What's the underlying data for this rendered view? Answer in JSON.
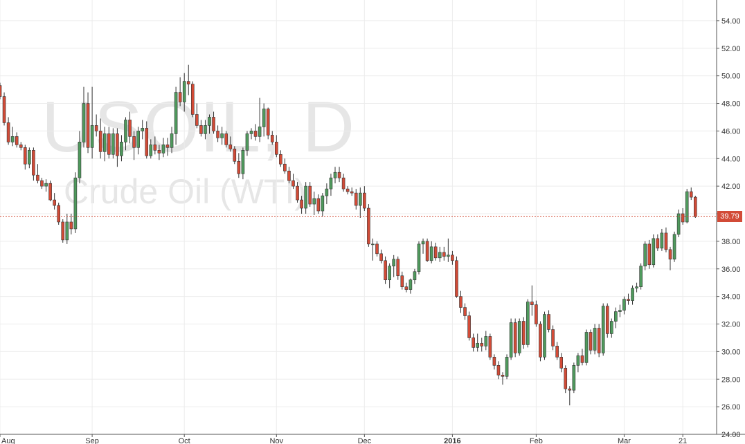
{
  "chart_data": {
    "type": "candlestick",
    "watermark": {
      "symbol": "USOIL, D",
      "name": "Crude Oil (WTI)"
    },
    "y_ticks": [
      "24.00",
      "26.00",
      "28.00",
      "30.00",
      "32.00",
      "34.00",
      "36.00",
      "38.00",
      "40.00",
      "42.00",
      "44.00",
      "46.00",
      "48.00",
      "50.00",
      "52.00",
      "54.00"
    ],
    "ylim": [
      24,
      55.5
    ],
    "x_ticks": [
      {
        "label": "Aug",
        "index": 0
      },
      {
        "label": "Sep",
        "index": 22
      },
      {
        "label": "Oct",
        "index": 44
      },
      {
        "label": "Nov",
        "index": 66
      },
      {
        "label": "Dec",
        "index": 87
      },
      {
        "label": "2016",
        "index": 108
      },
      {
        "label": "Feb",
        "index": 128
      },
      {
        "label": "Mar",
        "index": 149
      },
      {
        "label": "21",
        "index": 163
      }
    ],
    "last_price": "39.79",
    "grid": true,
    "colors": {
      "up": "#4f9a5d",
      "down": "#d24b37",
      "grid": "#ececec",
      "price_line": "#d24b37"
    },
    "ohlc": [
      [
        49.3,
        49.5,
        48.3,
        48.5
      ],
      [
        48.5,
        48.8,
        46.4,
        46.6
      ],
      [
        46.6,
        47.0,
        45.0,
        45.2
      ],
      [
        45.2,
        46.3,
        44.9,
        45.6
      ],
      [
        45.6,
        45.9,
        44.8,
        45.0
      ],
      [
        45.0,
        45.2,
        44.6,
        44.8
      ],
      [
        44.8,
        45.0,
        43.2,
        43.6
      ],
      [
        43.6,
        44.8,
        43.3,
        44.6
      ],
      [
        44.6,
        44.8,
        42.4,
        42.8
      ],
      [
        42.8,
        43.6,
        42.2,
        42.4
      ],
      [
        42.4,
        42.6,
        41.8,
        42.0
      ],
      [
        42.0,
        42.5,
        41.6,
        42.2
      ],
      [
        42.2,
        42.4,
        40.9,
        41.0
      ],
      [
        41.0,
        41.5,
        40.3,
        40.6
      ],
      [
        40.6,
        40.8,
        39.2,
        39.4
      ],
      [
        39.4,
        39.6,
        37.9,
        38.1
      ],
      [
        38.1,
        40.0,
        37.8,
        39.4
      ],
      [
        39.4,
        40.0,
        38.5,
        38.9
      ],
      [
        38.9,
        43.0,
        38.6,
        42.6
      ],
      [
        42.6,
        46.0,
        42.2,
        45.2
      ],
      [
        45.2,
        49.2,
        44.8,
        48.0
      ],
      [
        48.0,
        48.8,
        44.4,
        44.8
      ],
      [
        44.8,
        49.2,
        44.0,
        46.4
      ],
      [
        46.4,
        47.2,
        45.6,
        46.0
      ],
      [
        46.0,
        46.9,
        44.0,
        44.5
      ],
      [
        44.5,
        46.3,
        43.8,
        45.8
      ],
      [
        45.8,
        46.3,
        44.0,
        44.3
      ],
      [
        44.3,
        46.2,
        44.0,
        45.8
      ],
      [
        45.8,
        46.2,
        43.4,
        44.2
      ],
      [
        44.2,
        45.7,
        43.8,
        45.2
      ],
      [
        45.2,
        47.0,
        44.6,
        46.8
      ],
      [
        46.8,
        47.4,
        45.1,
        45.6
      ],
      [
        45.6,
        46.0,
        43.9,
        44.8
      ],
      [
        44.8,
        46.3,
        44.3,
        46.0
      ],
      [
        46.0,
        46.8,
        45.4,
        46.2
      ],
      [
        46.2,
        46.7,
        44.0,
        44.2
      ],
      [
        44.2,
        45.4,
        44.0,
        45.0
      ],
      [
        45.0,
        45.6,
        44.3,
        44.6
      ],
      [
        44.6,
        45.0,
        43.9,
        44.4
      ],
      [
        44.4,
        45.5,
        44.1,
        45.0
      ],
      [
        45.0,
        45.5,
        44.2,
        44.8
      ],
      [
        44.8,
        46.3,
        44.4,
        45.8
      ],
      [
        45.8,
        49.2,
        45.0,
        48.8
      ],
      [
        48.8,
        49.9,
        47.8,
        48.1
      ],
      [
        48.1,
        50.2,
        47.4,
        49.6
      ],
      [
        49.6,
        50.8,
        48.6,
        49.4
      ],
      [
        49.4,
        49.6,
        47.0,
        47.2
      ],
      [
        47.2,
        48.0,
        46.2,
        46.4
      ],
      [
        46.4,
        46.8,
        45.6,
        45.8
      ],
      [
        45.8,
        46.8,
        45.4,
        46.4
      ],
      [
        46.4,
        47.2,
        45.8,
        47.0
      ],
      [
        47.0,
        47.4,
        45.8,
        46.0
      ],
      [
        46.0,
        46.4,
        45.2,
        45.5
      ],
      [
        45.5,
        46.3,
        45.0,
        45.8
      ],
      [
        45.8,
        46.0,
        44.8,
        45.0
      ],
      [
        45.0,
        45.6,
        44.5,
        44.7
      ],
      [
        44.7,
        44.9,
        43.6,
        43.8
      ],
      [
        43.8,
        44.4,
        42.6,
        42.9
      ],
      [
        42.9,
        44.8,
        42.5,
        44.6
      ],
      [
        44.6,
        46.0,
        44.2,
        45.8
      ],
      [
        45.8,
        46.2,
        45.4,
        46.0
      ],
      [
        46.0,
        46.5,
        45.3,
        45.6
      ],
      [
        45.6,
        48.4,
        45.2,
        46.3
      ],
      [
        46.3,
        48.0,
        45.6,
        47.6
      ],
      [
        47.6,
        47.7,
        45.4,
        45.7
      ],
      [
        45.7,
        46.0,
        45.0,
        45.2
      ],
      [
        45.2,
        45.7,
        44.1,
        44.3
      ],
      [
        44.3,
        44.6,
        43.4,
        43.6
      ],
      [
        43.6,
        44.0,
        42.9,
        43.1
      ],
      [
        43.1,
        43.4,
        42.2,
        42.4
      ],
      [
        42.4,
        42.9,
        41.8,
        42.0
      ],
      [
        42.0,
        42.3,
        40.8,
        41.0
      ],
      [
        41.0,
        41.3,
        40.0,
        40.4
      ],
      [
        40.4,
        42.3,
        40.0,
        42.0
      ],
      [
        42.0,
        42.3,
        40.5,
        40.7
      ],
      [
        40.7,
        41.6,
        39.9,
        41.1
      ],
      [
        41.1,
        41.4,
        40.0,
        40.2
      ],
      [
        40.2,
        41.5,
        39.8,
        41.3
      ],
      [
        41.3,
        42.2,
        40.7,
        41.8
      ],
      [
        41.8,
        42.9,
        41.3,
        42.6
      ],
      [
        42.6,
        43.4,
        42.2,
        43.0
      ],
      [
        43.0,
        43.4,
        42.3,
        42.6
      ],
      [
        42.6,
        42.9,
        41.6,
        41.8
      ],
      [
        41.8,
        42.0,
        41.4,
        41.6
      ],
      [
        41.6,
        41.9,
        41.3,
        41.5
      ],
      [
        41.5,
        41.8,
        40.3,
        40.6
      ],
      [
        40.6,
        41.9,
        39.7,
        41.5
      ],
      [
        41.5,
        42.0,
        40.2,
        40.4
      ],
      [
        40.4,
        40.7,
        37.6,
        37.8
      ],
      [
        37.8,
        38.2,
        36.6,
        37.8
      ],
      [
        37.8,
        38.0,
        36.9,
        37.1
      ],
      [
        37.1,
        37.4,
        36.4,
        36.6
      ],
      [
        36.6,
        36.9,
        34.9,
        35.2
      ],
      [
        35.2,
        36.4,
        34.6,
        36.2
      ],
      [
        36.2,
        37.0,
        35.4,
        36.7
      ],
      [
        36.7,
        36.9,
        35.2,
        35.5
      ],
      [
        35.5,
        35.8,
        34.5,
        34.7
      ],
      [
        34.7,
        35.0,
        34.3,
        34.5
      ],
      [
        34.5,
        35.3,
        34.2,
        35.2
      ],
      [
        35.2,
        36.0,
        34.9,
        35.8
      ],
      [
        35.8,
        38.0,
        35.6,
        37.8
      ],
      [
        37.8,
        38.2,
        37.1,
        38.0
      ],
      [
        38.0,
        38.2,
        36.5,
        36.6
      ],
      [
        36.6,
        38.0,
        36.4,
        37.6
      ],
      [
        37.6,
        37.9,
        36.6,
        36.8
      ],
      [
        36.8,
        37.6,
        36.5,
        37.2
      ],
      [
        37.2,
        37.6,
        36.6,
        36.9
      ],
      [
        36.9,
        38.2,
        36.5,
        37.0
      ],
      [
        37.0,
        37.3,
        36.3,
        36.6
      ],
      [
        36.6,
        36.9,
        33.9,
        34.0
      ],
      [
        34.0,
        34.4,
        32.8,
        33.2
      ],
      [
        33.2,
        33.5,
        32.3,
        32.6
      ],
      [
        32.6,
        32.9,
        30.8,
        31.0
      ],
      [
        31.0,
        31.3,
        30.0,
        30.3
      ],
      [
        30.3,
        31.3,
        30.0,
        30.6
      ],
      [
        30.6,
        31.0,
        30.0,
        30.4
      ],
      [
        30.4,
        31.5,
        30.1,
        31.1
      ],
      [
        31.1,
        31.3,
        29.4,
        29.6
      ],
      [
        29.6,
        29.8,
        28.7,
        29.0
      ],
      [
        29.0,
        29.3,
        28.0,
        28.3
      ],
      [
        28.3,
        28.5,
        27.6,
        28.2
      ],
      [
        28.2,
        29.8,
        28.0,
        29.6
      ],
      [
        29.6,
        32.4,
        29.4,
        32.1
      ],
      [
        32.1,
        32.4,
        29.6,
        29.9
      ],
      [
        29.9,
        32.4,
        29.7,
        32.2
      ],
      [
        32.2,
        32.5,
        30.2,
        30.5
      ],
      [
        30.5,
        33.8,
        30.3,
        33.6
      ],
      [
        33.6,
        34.8,
        32.6,
        33.4
      ],
      [
        33.4,
        33.7,
        31.8,
        32.0
      ],
      [
        32.0,
        32.2,
        29.3,
        29.6
      ],
      [
        29.6,
        32.9,
        29.4,
        32.7
      ],
      [
        32.7,
        33.0,
        31.4,
        31.6
      ],
      [
        31.6,
        31.9,
        30.1,
        30.4
      ],
      [
        30.4,
        30.7,
        29.4,
        29.6
      ],
      [
        29.6,
        29.9,
        28.5,
        28.8
      ],
      [
        28.8,
        29.0,
        27.0,
        27.3
      ],
      [
        27.3,
        27.5,
        26.1,
        27.2
      ],
      [
        27.2,
        29.2,
        27.0,
        29.0
      ],
      [
        29.0,
        29.9,
        28.5,
        29.7
      ],
      [
        29.7,
        30.2,
        29.0,
        29.2
      ],
      [
        29.2,
        31.6,
        29.0,
        31.4
      ],
      [
        31.4,
        31.6,
        29.8,
        30.1
      ],
      [
        30.1,
        32.0,
        29.8,
        31.7
      ],
      [
        31.7,
        32.0,
        29.6,
        29.9
      ],
      [
        29.9,
        33.5,
        29.7,
        33.3
      ],
      [
        33.3,
        33.5,
        31.0,
        31.3
      ],
      [
        31.3,
        32.4,
        31.0,
        32.2
      ],
      [
        32.2,
        33.2,
        31.7,
        32.9
      ],
      [
        32.9,
        33.4,
        32.5,
        33.0
      ],
      [
        33.0,
        34.0,
        32.7,
        33.8
      ],
      [
        33.8,
        34.2,
        33.4,
        33.7
      ],
      [
        33.7,
        34.8,
        33.4,
        34.6
      ],
      [
        34.6,
        35.0,
        34.3,
        34.7
      ],
      [
        34.7,
        36.4,
        34.5,
        36.2
      ],
      [
        36.2,
        38.0,
        35.9,
        37.8
      ],
      [
        37.8,
        38.1,
        36.0,
        36.3
      ],
      [
        36.3,
        38.5,
        36.1,
        38.2
      ],
      [
        38.2,
        38.5,
        37.3,
        37.5
      ],
      [
        37.5,
        38.9,
        37.3,
        38.6
      ],
      [
        38.6,
        39.0,
        37.2,
        37.4
      ],
      [
        37.4,
        37.6,
        35.9,
        36.7
      ],
      [
        36.7,
        38.7,
        36.5,
        38.5
      ],
      [
        38.5,
        40.3,
        38.3,
        40.0
      ],
      [
        40.0,
        40.4,
        39.2,
        39.4
      ],
      [
        39.4,
        41.8,
        39.3,
        41.6
      ],
      [
        41.6,
        41.9,
        41.0,
        41.2
      ],
      [
        41.2,
        41.3,
        39.7,
        39.79
      ]
    ]
  }
}
